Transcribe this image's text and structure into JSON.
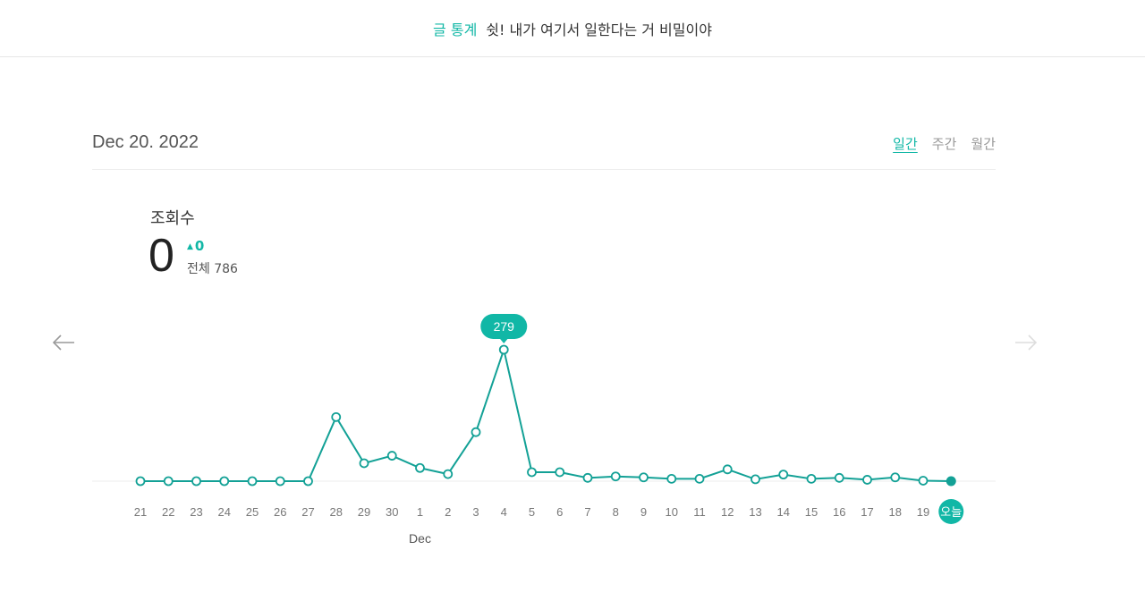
{
  "header": {
    "stats_label": "글 통계",
    "tagline": "쉿! 내가 여기서 일한다는 거 비밀이야"
  },
  "panel": {
    "date": "Dec 20. 2022",
    "tabs": [
      {
        "label": "일간",
        "active": true
      },
      {
        "label": "주간",
        "active": false
      },
      {
        "label": "월간",
        "active": false
      }
    ]
  },
  "metric": {
    "title": "조회수",
    "value": "0",
    "delta": "0",
    "total": "전체 786"
  },
  "nav": {
    "prev_icon": "arrow-left-icon",
    "next_icon": "arrow-right-icon"
  },
  "colors": {
    "accent": "#11b7a6",
    "line": "#13a196"
  },
  "chart_data": {
    "type": "line",
    "categories": [
      "21",
      "22",
      "23",
      "24",
      "25",
      "26",
      "27",
      "28",
      "29",
      "30",
      "1",
      "2",
      "3",
      "4",
      "5",
      "6",
      "7",
      "8",
      "9",
      "10",
      "11",
      "12",
      "13",
      "14",
      "15",
      "16",
      "17",
      "18",
      "19",
      "오늘"
    ],
    "values": [
      0,
      0,
      0,
      0,
      0,
      0,
      0,
      136,
      38,
      54,
      28,
      15,
      104,
      279,
      19,
      19,
      7,
      10,
      8,
      5,
      5,
      25,
      4,
      14,
      5,
      7,
      3,
      8,
      1,
      0
    ],
    "month_label": "Dec",
    "highlight": {
      "category": "4",
      "label": "279"
    },
    "today_label": "오늘",
    "ylim": [
      0,
      279
    ]
  }
}
